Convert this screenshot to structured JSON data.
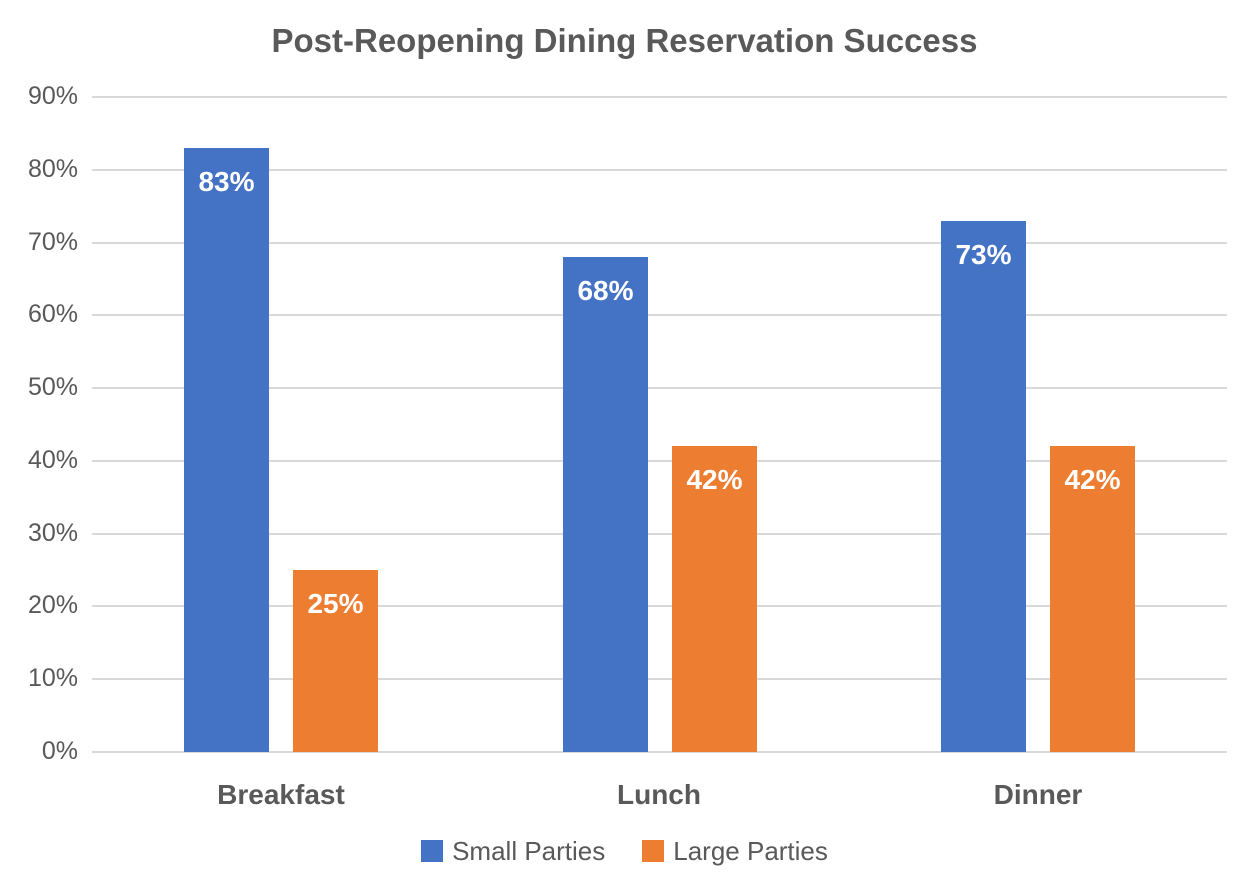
{
  "title": "Post-Reopening Dining Reservation Success",
  "colors": {
    "series_blue": "#4472C4",
    "series_orange": "#ED7D31",
    "gridline": "#D9D9D9",
    "axis_text": "#595959",
    "bar_label_text": "#FFFFFF"
  },
  "chart_data": {
    "type": "bar",
    "title": "Post-Reopening Dining Reservation Success",
    "categories": [
      "Breakfast",
      "Lunch",
      "Dinner"
    ],
    "series": [
      {
        "name": "Small Parties",
        "color": "#4472C4",
        "values": [
          83,
          68,
          73
        ]
      },
      {
        "name": "Large Parties",
        "color": "#ED7D31",
        "values": [
          25,
          42,
          42
        ]
      }
    ],
    "data_labels": [
      "83%",
      "68%",
      "73%",
      "25%",
      "42%",
      "42%"
    ],
    "value_suffix": "%",
    "xlabel": "",
    "ylabel": "",
    "ylim": [
      0,
      90
    ],
    "y_tick_step": 10,
    "y_tick_labels": [
      "0%",
      "10%",
      "20%",
      "30%",
      "40%",
      "50%",
      "60%",
      "70%",
      "80%",
      "90%"
    ],
    "grid": true,
    "legend_position": "bottom",
    "data_label_position": "inside-top"
  }
}
